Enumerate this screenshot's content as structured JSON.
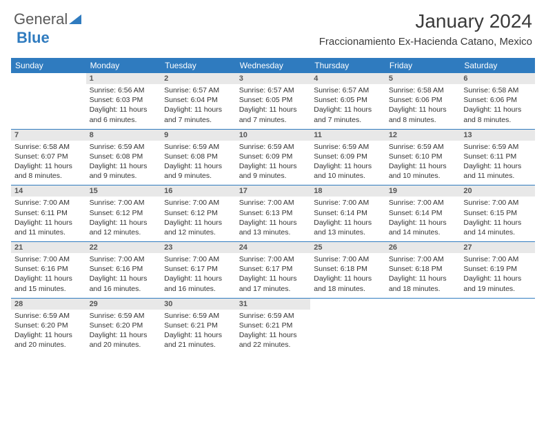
{
  "brand": {
    "gray": "General",
    "blue": "Blue",
    "color_gray": "#5a5a5a",
    "color_blue": "#2f7bbf"
  },
  "title": "January 2024",
  "location": "Fraccionamiento Ex-Hacienda Catano, Mexico",
  "header_bg": "#2f7bbf",
  "header_fg": "#ffffff",
  "daynum_bg": "#e8e8e8",
  "separator_color": "#2f7bbf",
  "days_of_week": [
    "Sunday",
    "Monday",
    "Tuesday",
    "Wednesday",
    "Thursday",
    "Friday",
    "Saturday"
  ],
  "weeks": [
    [
      {
        "n": "",
        "sr": "",
        "ss": "",
        "dl": ""
      },
      {
        "n": "1",
        "sr": "Sunrise: 6:56 AM",
        "ss": "Sunset: 6:03 PM",
        "dl": "Daylight: 11 hours and 6 minutes."
      },
      {
        "n": "2",
        "sr": "Sunrise: 6:57 AM",
        "ss": "Sunset: 6:04 PM",
        "dl": "Daylight: 11 hours and 7 minutes."
      },
      {
        "n": "3",
        "sr": "Sunrise: 6:57 AM",
        "ss": "Sunset: 6:05 PM",
        "dl": "Daylight: 11 hours and 7 minutes."
      },
      {
        "n": "4",
        "sr": "Sunrise: 6:57 AM",
        "ss": "Sunset: 6:05 PM",
        "dl": "Daylight: 11 hours and 7 minutes."
      },
      {
        "n": "5",
        "sr": "Sunrise: 6:58 AM",
        "ss": "Sunset: 6:06 PM",
        "dl": "Daylight: 11 hours and 8 minutes."
      },
      {
        "n": "6",
        "sr": "Sunrise: 6:58 AM",
        "ss": "Sunset: 6:06 PM",
        "dl": "Daylight: 11 hours and 8 minutes."
      }
    ],
    [
      {
        "n": "7",
        "sr": "Sunrise: 6:58 AM",
        "ss": "Sunset: 6:07 PM",
        "dl": "Daylight: 11 hours and 8 minutes."
      },
      {
        "n": "8",
        "sr": "Sunrise: 6:59 AM",
        "ss": "Sunset: 6:08 PM",
        "dl": "Daylight: 11 hours and 9 minutes."
      },
      {
        "n": "9",
        "sr": "Sunrise: 6:59 AM",
        "ss": "Sunset: 6:08 PM",
        "dl": "Daylight: 11 hours and 9 minutes."
      },
      {
        "n": "10",
        "sr": "Sunrise: 6:59 AM",
        "ss": "Sunset: 6:09 PM",
        "dl": "Daylight: 11 hours and 9 minutes."
      },
      {
        "n": "11",
        "sr": "Sunrise: 6:59 AM",
        "ss": "Sunset: 6:09 PM",
        "dl": "Daylight: 11 hours and 10 minutes."
      },
      {
        "n": "12",
        "sr": "Sunrise: 6:59 AM",
        "ss": "Sunset: 6:10 PM",
        "dl": "Daylight: 11 hours and 10 minutes."
      },
      {
        "n": "13",
        "sr": "Sunrise: 6:59 AM",
        "ss": "Sunset: 6:11 PM",
        "dl": "Daylight: 11 hours and 11 minutes."
      }
    ],
    [
      {
        "n": "14",
        "sr": "Sunrise: 7:00 AM",
        "ss": "Sunset: 6:11 PM",
        "dl": "Daylight: 11 hours and 11 minutes."
      },
      {
        "n": "15",
        "sr": "Sunrise: 7:00 AM",
        "ss": "Sunset: 6:12 PM",
        "dl": "Daylight: 11 hours and 12 minutes."
      },
      {
        "n": "16",
        "sr": "Sunrise: 7:00 AM",
        "ss": "Sunset: 6:12 PM",
        "dl": "Daylight: 11 hours and 12 minutes."
      },
      {
        "n": "17",
        "sr": "Sunrise: 7:00 AM",
        "ss": "Sunset: 6:13 PM",
        "dl": "Daylight: 11 hours and 13 minutes."
      },
      {
        "n": "18",
        "sr": "Sunrise: 7:00 AM",
        "ss": "Sunset: 6:14 PM",
        "dl": "Daylight: 11 hours and 13 minutes."
      },
      {
        "n": "19",
        "sr": "Sunrise: 7:00 AM",
        "ss": "Sunset: 6:14 PM",
        "dl": "Daylight: 11 hours and 14 minutes."
      },
      {
        "n": "20",
        "sr": "Sunrise: 7:00 AM",
        "ss": "Sunset: 6:15 PM",
        "dl": "Daylight: 11 hours and 14 minutes."
      }
    ],
    [
      {
        "n": "21",
        "sr": "Sunrise: 7:00 AM",
        "ss": "Sunset: 6:16 PM",
        "dl": "Daylight: 11 hours and 15 minutes."
      },
      {
        "n": "22",
        "sr": "Sunrise: 7:00 AM",
        "ss": "Sunset: 6:16 PM",
        "dl": "Daylight: 11 hours and 16 minutes."
      },
      {
        "n": "23",
        "sr": "Sunrise: 7:00 AM",
        "ss": "Sunset: 6:17 PM",
        "dl": "Daylight: 11 hours and 16 minutes."
      },
      {
        "n": "24",
        "sr": "Sunrise: 7:00 AM",
        "ss": "Sunset: 6:17 PM",
        "dl": "Daylight: 11 hours and 17 minutes."
      },
      {
        "n": "25",
        "sr": "Sunrise: 7:00 AM",
        "ss": "Sunset: 6:18 PM",
        "dl": "Daylight: 11 hours and 18 minutes."
      },
      {
        "n": "26",
        "sr": "Sunrise: 7:00 AM",
        "ss": "Sunset: 6:18 PM",
        "dl": "Daylight: 11 hours and 18 minutes."
      },
      {
        "n": "27",
        "sr": "Sunrise: 7:00 AM",
        "ss": "Sunset: 6:19 PM",
        "dl": "Daylight: 11 hours and 19 minutes."
      }
    ],
    [
      {
        "n": "28",
        "sr": "Sunrise: 6:59 AM",
        "ss": "Sunset: 6:20 PM",
        "dl": "Daylight: 11 hours and 20 minutes."
      },
      {
        "n": "29",
        "sr": "Sunrise: 6:59 AM",
        "ss": "Sunset: 6:20 PM",
        "dl": "Daylight: 11 hours and 20 minutes."
      },
      {
        "n": "30",
        "sr": "Sunrise: 6:59 AM",
        "ss": "Sunset: 6:21 PM",
        "dl": "Daylight: 11 hours and 21 minutes."
      },
      {
        "n": "31",
        "sr": "Sunrise: 6:59 AM",
        "ss": "Sunset: 6:21 PM",
        "dl": "Daylight: 11 hours and 22 minutes."
      },
      {
        "n": "",
        "sr": "",
        "ss": "",
        "dl": ""
      },
      {
        "n": "",
        "sr": "",
        "ss": "",
        "dl": ""
      },
      {
        "n": "",
        "sr": "",
        "ss": "",
        "dl": ""
      }
    ]
  ]
}
